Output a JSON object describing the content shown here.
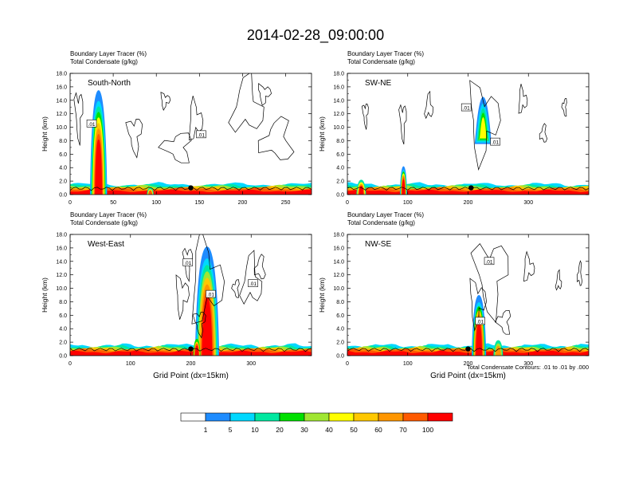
{
  "figure": {
    "title": "2014-02-28_09:00:00",
    "contour_note": "Total Condensate Contours: .01 to .01 by .000"
  },
  "colorbar": {
    "colors": [
      "#ffffff",
      "#1e8cff",
      "#00d8ff",
      "#00e8a0",
      "#00e000",
      "#a0e632",
      "#ffff00",
      "#ffc800",
      "#ff9600",
      "#ff5a00",
      "#ff0000"
    ],
    "labels": [
      "1",
      "5",
      "10",
      "20",
      "30",
      "40",
      "50",
      "60",
      "70",
      "100"
    ]
  },
  "chart_data": [
    {
      "type": "heatmap",
      "panel_label": "South-North",
      "title_line1": "Boundary Layer Tracer   (%)",
      "title_line2": "Total Condensate   (g/kg)",
      "ylabel": "Height (km)",
      "xlabel": "",
      "xlim": [
        0,
        280
      ],
      "ylim": [
        0,
        18
      ],
      "xticks": [
        "0",
        "50",
        "100",
        "150",
        "200",
        "250"
      ],
      "xtick_values": [
        0,
        50,
        100,
        150,
        200,
        250
      ],
      "yticks": [
        "0.0",
        "2.0",
        "4.0",
        "6.0",
        "8.0",
        "10.0",
        "12.0",
        "14.0",
        "16.0",
        "18.0"
      ],
      "contour_labels": [
        {
          "text": ".01",
          "x": 25,
          "y": 10.5
        },
        {
          "text": ".01",
          "x": 152,
          "y": 8.9
        }
      ],
      "marker_x": 140,
      "marker_y": 1.0
    },
    {
      "type": "heatmap",
      "panel_label": "SW-NE",
      "title_line1": "Boundary Layer Tracer   (%)",
      "title_line2": "Total Condensate   (g/kg)",
      "ylabel": "Height (km)",
      "xlabel": "",
      "xlim": [
        0,
        400
      ],
      "ylim": [
        0,
        18
      ],
      "xticks": [
        "0",
        "100",
        "200",
        "300"
      ],
      "xtick_values": [
        0,
        100,
        200,
        300
      ],
      "yticks": [
        "0.0",
        "2.0",
        "4.0",
        "6.0",
        "8.0",
        "10.0",
        "12.0",
        "14.0",
        "16.0",
        "18.0"
      ],
      "contour_labels": [
        {
          "text": ".01",
          "x": 197,
          "y": 12.9
        },
        {
          "text": ".01",
          "x": 245,
          "y": 7.8
        }
      ],
      "marker_x": 205,
      "marker_y": 1.0
    },
    {
      "type": "heatmap",
      "panel_label": "West-East",
      "title_line1": "Boundary Layer Tracer   (%)",
      "title_line2": "Total Condensate   (g/kg)",
      "ylabel": "Height (km)",
      "xlabel": "Grid Point (dx=15km)",
      "xlim": [
        0,
        400
      ],
      "ylim": [
        0,
        18
      ],
      "xticks": [
        "0",
        "100",
        "200",
        "300"
      ],
      "xtick_values": [
        0,
        100,
        200,
        300
      ],
      "yticks": [
        "0.0",
        "2.0",
        "4.0",
        "6.0",
        "8.0",
        "10.0",
        "12.0",
        "14.0",
        "16.0",
        "18.0"
      ],
      "contour_labels": [
        {
          "text": ".01",
          "x": 195,
          "y": 13.8
        },
        {
          "text": ".01",
          "x": 303,
          "y": 10.7
        },
        {
          "text": ".01",
          "x": 233,
          "y": 9.1
        }
      ],
      "marker_x": 200,
      "marker_y": 1.0
    },
    {
      "type": "heatmap",
      "panel_label": "NW-SE",
      "title_line1": "Boundary Layer Tracer   (%)",
      "title_line2": "Total Condensate   (g/kg)",
      "ylabel": "Height (km)",
      "xlabel": "Grid Point (dx=15km)",
      "xlim": [
        0,
        400
      ],
      "ylim": [
        0,
        18
      ],
      "xticks": [
        "0",
        "100",
        "200",
        "300"
      ],
      "xtick_values": [
        0,
        100,
        200,
        300
      ],
      "yticks": [
        "0.0",
        "2.0",
        "4.0",
        "6.0",
        "8.0",
        "10.0",
        "12.0",
        "14.0",
        "16.0",
        "18.0"
      ],
      "contour_labels": [
        {
          "text": ".01",
          "x": 235,
          "y": 14.0
        },
        {
          "text": ".01",
          "x": 220,
          "y": 5.1
        }
      ],
      "marker_x": 200,
      "marker_y": 1.0
    }
  ]
}
